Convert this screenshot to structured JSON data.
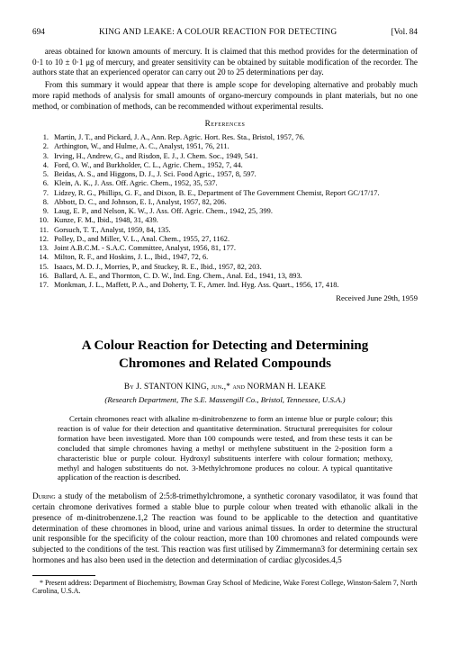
{
  "header": {
    "page": "694",
    "running": "KING AND LEAKE: A COLOUR REACTION FOR DETECTING",
    "vol": "[Vol. 84"
  },
  "top_paragraphs": [
    "areas obtained for known amounts of mercury. It is claimed that this method provides for the determination of 0·1 to 10 ± 0·1 μg of mercury, and greater sensitivity can be obtained by suitable modification of the recorder. The authors state that an experienced operator can carry out 20 to 25 determinations per day.",
    "From this summary it would appear that there is ample scope for developing alternative and probably much more rapid methods of analysis for small amounts of organo-mercury compounds in plant materials, but no one method, or combination of methods, can be recommended without experimental results."
  ],
  "references_heading": "References",
  "references": [
    "Martin, J. T., and Pickard, J. A., Ann. Rep. Agric. Hort. Res. Sta., Bristol, 1957, 76.",
    "Arthington, W., and Hulme, A. C., Analyst, 1951, 76, 211.",
    "Irving, H., Andrew, G., and Risdon, E. J., J. Chem. Soc., 1949, 541.",
    "Ford, O. W., and Burkholder, C. L., Agric. Chem., 1952, 7, 44.",
    "Beidas, A. S., and Higgons, D. J., J. Sci. Food Agric., 1957, 8, 597.",
    "Klein, A. K., J. Ass. Off. Agric. Chem., 1952, 35, 537.",
    "Lidzey, R. G., Phillips, G. F., and Dixon, B. E., Department of The Government Chemist, Report GC/17/17.",
    "Abbott, D. C., and Johnson, E. I., Analyst, 1957, 82, 206.",
    "Laug, E. P., and Nelson, K. W., J. Ass. Off. Agric. Chem., 1942, 25, 399.",
    "Kunze, F. M., Ibid., 1948, 31, 439.",
    "Gorsuch, T. T., Analyst, 1959, 84, 135.",
    "Polley, D., and Miller, V. L., Anal. Chem., 1955, 27, 1162.",
    "Joint A.B.C.M. - S.A.C. Committee, Analyst, 1956, 81, 177.",
    "Milton, R. F., and Hoskins, J. L., Ibid., 1947, 72, 6.",
    "Isaacs, M. D. J., Morries, P., and Stuckey, R. E., Ibid., 1957, 82, 203.",
    "Ballard, A. E., and Thornton, C. D. W., Ind. Eng. Chem., Anal. Ed., 1941, 13, 893.",
    "Monkman, J. L., Maffett, P. A., and Doherty, T. F., Amer. Ind. Hyg. Ass. Quart., 1956, 17, 418."
  ],
  "received": "Received June 29th, 1959",
  "article": {
    "title_line1": "A Colour Reaction for Detecting and Determining",
    "title_line2": "Chromones and Related Compounds",
    "by": "By J. STANTON KING, jun.,* and NORMAN H. LEAKE",
    "affil": "(Research Department, The S.E. Massengill Co., Bristol, Tennessee, U.S.A.)",
    "abstract": "Certain chromones react with alkaline m-dinitrobenzene to form an intense blue or purple colour; this reaction is of value for their detection and quantitative determination. Structural prerequisites for colour formation have been investigated. More than 100 compounds were tested, and from these tests it can be concluded that simple chromones having a methyl or methylene substituent in the 2-position form a characteristic blue or purple colour. Hydroxyl substituents interfere with colour formation; methoxy, methyl and halogen substituents do not. 3-Methylchromone produces no colour. A typical quantitative application of the reaction is described.",
    "body": "During a study of the metabolism of 2:5:8-trimethylchromone, a synthetic coronary vasodilator, it was found that certain chromone derivatives formed a stable blue to purple colour when treated with ethanolic alkali in the presence of m-dinitrobenzene.1,2 The reaction was found to be applicable to the detection and quantitative determination of these chromones in blood, urine and various animal tissues. In order to determine the structural unit responsible for the specificity of the colour reaction, more than 100 chromones and related compounds were subjected to the conditions of the test. This reaction was first utilised by Zimmermann3 for determining certain sex hormones and has also been used in the detection and determination of cardiac glycosides.4,5",
    "footnote": "* Present address: Department of Biochemistry, Bowman Gray School of Medicine, Wake Forest College, Winston-Salem 7, North Carolina, U.S.A."
  }
}
